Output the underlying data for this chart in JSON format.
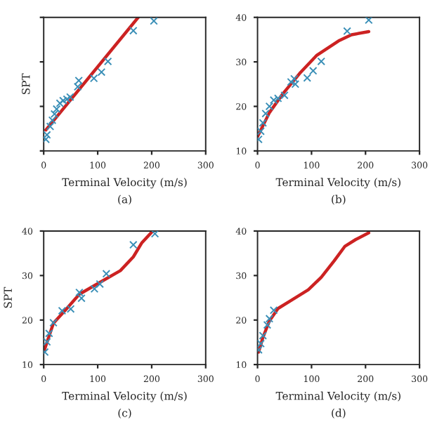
{
  "chart_data": [
    {
      "type": "scatter",
      "xlabel": "Terminal Velocity (m/s)",
      "ylabel": "SPT",
      "annotations": [
        "(a)"
      ],
      "xlim": [
        0,
        300
      ],
      "ylim": [
        10,
        40
      ],
      "xticks": [
        0,
        100,
        200,
        300
      ],
      "yticks": [
        10,
        20,
        30,
        40
      ],
      "tick_labels": "x",
      "grid": false,
      "series": [
        {
          "marker": "cross",
          "color": "#3a8fb7",
          "x": [
            4,
            6,
            12,
            16,
            20,
            24,
            30,
            36,
            43,
            49,
            63,
            65,
            93,
            107,
            119,
            166,
            204
          ],
          "values": [
            12.6,
            13.6,
            15.5,
            16.9,
            18.3,
            19.4,
            20.7,
            21.3,
            21.6,
            22.1,
            24.4,
            25.8,
            26.3,
            27.7,
            30.1,
            37.0,
            39.2
          ]
        },
        {
          "type": "line",
          "marker": "none",
          "color": "#cc2222",
          "x": [
            4,
            175
          ],
          "values": [
            14.7,
            40
          ]
        }
      ]
    },
    {
      "type": "scatter",
      "xlabel": "Terminal Velocity (m/s)",
      "annotations": [
        "(b)"
      ],
      "xlim": [
        0,
        300
      ],
      "ylim": [
        10,
        40
      ],
      "xticks": [
        0,
        100,
        200,
        300
      ],
      "yticks": [
        10,
        20,
        30,
        40
      ],
      "grid": false,
      "series": [
        {
          "marker": "cross",
          "color": "#3a8fb7",
          "x": [
            2,
            6,
            10,
            15,
            22,
            30,
            38,
            50,
            62,
            68,
            70,
            92,
            103,
            118,
            166,
            206
          ],
          "values": [
            12.6,
            14.4,
            16.3,
            18.4,
            20,
            21.4,
            21.8,
            22.5,
            25.5,
            26.2,
            25,
            26.4,
            28,
            30.1,
            36.9,
            39.4
          ]
        },
        {
          "type": "line",
          "marker": "none",
          "color": "#cc2222",
          "x": [
            0,
            22,
            46,
            78,
            110,
            150,
            174,
            206
          ],
          "values": [
            13.2,
            18.6,
            22.7,
            27.4,
            31.5,
            34.7,
            36.1,
            36.8
          ]
        }
      ]
    },
    {
      "type": "scatter",
      "xlabel": "Terminal Velocity (m/s)",
      "ylabel": "SPT",
      "annotations": [
        "(c)"
      ],
      "xlim": [
        0,
        300
      ],
      "ylim": [
        10,
        40
      ],
      "xticks": [
        0,
        100,
        200,
        300
      ],
      "yticks": [
        10,
        20,
        30,
        40
      ],
      "grid": false,
      "series": [
        {
          "marker": "cross",
          "color": "#3a8fb7",
          "x": [
            2,
            6,
            10,
            18,
            34,
            50,
            66,
            70,
            94,
            104,
            116,
            166,
            206
          ],
          "values": [
            12.8,
            15.1,
            17,
            19.4,
            22.1,
            22.5,
            26.2,
            24.9,
            27,
            28.1,
            30.4,
            36.9,
            39.4
          ]
        },
        {
          "type": "line",
          "marker": "none",
          "color": "#cc2222",
          "x": [
            0,
            18,
            42,
            66,
            106,
            142,
            166,
            182,
            202
          ],
          "values": [
            12.8,
            19.3,
            22.5,
            25.8,
            28.6,
            31.1,
            34.2,
            37.4,
            40
          ]
        }
      ]
    },
    {
      "type": "scatter",
      "xlabel": "Terminal Velocity (m/s)",
      "annotations": [
        "(d)"
      ],
      "xlim": [
        0,
        300
      ],
      "ylim": [
        10,
        40
      ],
      "xticks": [
        0,
        100,
        200,
        300
      ],
      "yticks": [
        10,
        20,
        30,
        40
      ],
      "grid": false,
      "series": [
        {
          "marker": "cross",
          "color": "#3a8fb7",
          "x": [
            2,
            6,
            10,
            18,
            22,
            30
          ],
          "values": [
            13.3,
            14.7,
            16.5,
            18.9,
            20.3,
            22.2
          ]
        },
        {
          "type": "line",
          "marker": "none",
          "color": "#cc2222",
          "x": [
            2,
            10,
            22,
            38,
            62,
            94,
            118,
            142,
            162,
            182,
            206
          ],
          "values": [
            12.8,
            16.1,
            19.8,
            22.6,
            24.4,
            26.8,
            29.6,
            33.3,
            36.6,
            38.1,
            39.6
          ]
        }
      ]
    }
  ]
}
